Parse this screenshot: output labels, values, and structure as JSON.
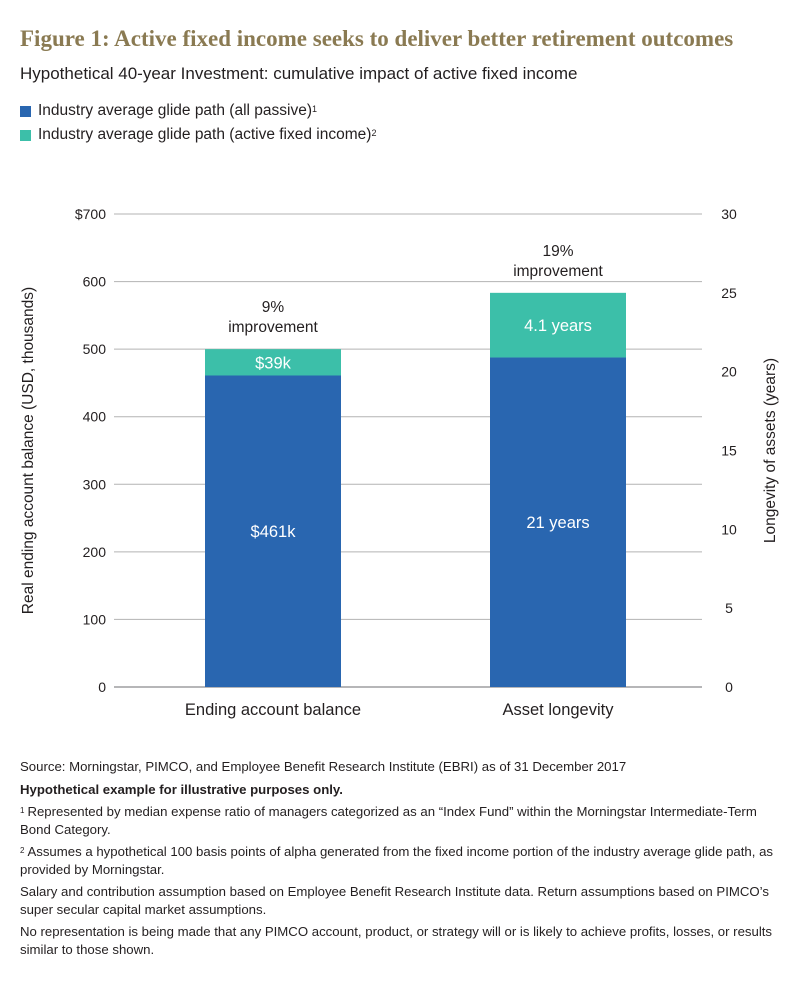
{
  "title": "Figure 1: Active fixed income seeks to deliver better retirement outcomes",
  "subtitle": "Hypothetical 40-year Investment: cumulative impact of active fixed income",
  "colors": {
    "passive": "#2966b0",
    "active": "#3cbfa9",
    "title": "#8a7a52",
    "grid": "#b3b3b3"
  },
  "legend": [
    {
      "label": "Industry average glide path (all passive)",
      "note": "1",
      "color": "#2966b0"
    },
    {
      "label": "Industry average glide path (active fixed income)",
      "note": "2",
      "color": "#3cbfa9"
    }
  ],
  "chart_data": {
    "type": "bar",
    "stacked": true,
    "categories": [
      "Ending account balance",
      "Asset longevity"
    ],
    "left_axis": {
      "label": "Real ending account balance (USD, thousands)",
      "ylim": [
        0,
        700
      ],
      "ticks": [
        0,
        100,
        200,
        300,
        400,
        500,
        600,
        700
      ],
      "tick_labels": [
        "0",
        "100",
        "200",
        "300",
        "400",
        "500",
        "600",
        "$700"
      ]
    },
    "right_axis": {
      "label": "Longevity of assets (years)",
      "ylim": [
        0,
        30
      ],
      "ticks": [
        0,
        5,
        10,
        15,
        20,
        25,
        30
      ],
      "tick_labels": [
        "0",
        "5",
        "10",
        "15",
        "20",
        "25",
        "30"
      ]
    },
    "grid": true,
    "bars": [
      {
        "category": "Ending account balance",
        "axis": "left",
        "segments": [
          {
            "series": "Industry average glide path (all passive)",
            "value": 461,
            "label": "$461k"
          },
          {
            "series": "Industry average glide path (active fixed income)",
            "value": 39,
            "label": "$39k"
          }
        ],
        "annotation": [
          "9%",
          "improvement"
        ]
      },
      {
        "category": "Asset longevity",
        "axis": "right",
        "segments": [
          {
            "series": "Industry average glide path (all passive)",
            "value": 20.9,
            "label": "21 years"
          },
          {
            "series": "Industry average glide path (active fixed income)",
            "value": 4.1,
            "label": "4.1 years"
          }
        ],
        "annotation": [
          "19%",
          "improvement"
        ]
      }
    ]
  },
  "notes": {
    "source": "Source: Morningstar, PIMCO, and Employee Benefit Research Institute (EBRI) as of 31 December 2017",
    "disclaimer": "Hypothetical example for illustrative purposes only.",
    "fn1_mark": "1",
    "fn1": "Represented by median expense ratio of managers categorized as an “Index Fund” within the Morningstar Intermediate-Term Bond Category.",
    "fn2_mark": "2",
    "fn2": "Assumes a hypothetical 100 basis points of alpha generated from the fixed income portion of the industry average glide path, as provided by Morningstar.",
    "salary": "Salary and contribution assumption based on Employee Benefit Research Institute data. Return assumptions based on PIMCO’s super secular capital market assumptions.",
    "representation": "No representation is being made that any PIMCO account, product, or strategy will or is likely to achieve profits, losses, or results similar to those shown."
  }
}
